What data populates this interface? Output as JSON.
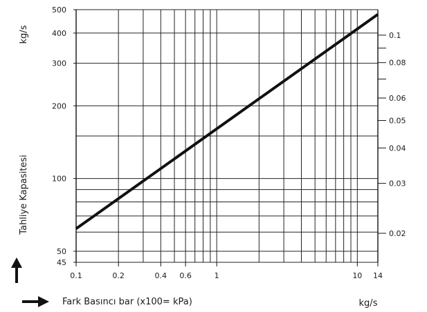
{
  "chart_data": {
    "type": "line",
    "scale": "log-log",
    "xlabel": "Fark Basıncı bar (x100= kPa)",
    "ylabel": "Tahliye Kapasitesi",
    "y_unit": "kg/s",
    "x_unit": "kg/s",
    "xlim": [
      0.1,
      14
    ],
    "ylim": [
      45,
      500
    ],
    "x_ticks": [
      0.1,
      0.2,
      0.4,
      0.6,
      1,
      10,
      14
    ],
    "x_tick_labels": [
      "0.1",
      "0.2",
      "0.4",
      "0.6",
      "1",
      "10",
      "14"
    ],
    "x_gridlines": [
      0.1,
      0.2,
      0.3,
      0.4,
      0.5,
      0.6,
      0.7,
      0.8,
      0.9,
      1,
      2,
      3,
      4,
      5,
      6,
      7,
      8,
      9,
      10,
      14
    ],
    "y_ticks": [
      45,
      50,
      100,
      200,
      300,
      400,
      500
    ],
    "y_tick_labels": [
      "45",
      "50",
      "100",
      "200",
      "300",
      "400",
      "500"
    ],
    "y_gridlines": [
      45,
      50,
      60,
      70,
      80,
      90,
      100,
      150,
      200,
      300,
      400,
      500
    ],
    "right_ticks": [
      0.02,
      0.03,
      0.04,
      0.05,
      0.06,
      0.08,
      0.1
    ],
    "right_tick_labels": [
      "0.02",
      "0.03",
      "0.04",
      "0.05",
      "0.06",
      "0.08",
      "0.1"
    ],
    "right_axis_range": [
      0.0158,
      0.123
    ],
    "right_minor_ticks": [
      0.07,
      0.09
    ],
    "series": [
      {
        "x": [
          0.1,
          14
        ],
        "y": [
          62,
          478
        ]
      }
    ],
    "grid": true
  }
}
